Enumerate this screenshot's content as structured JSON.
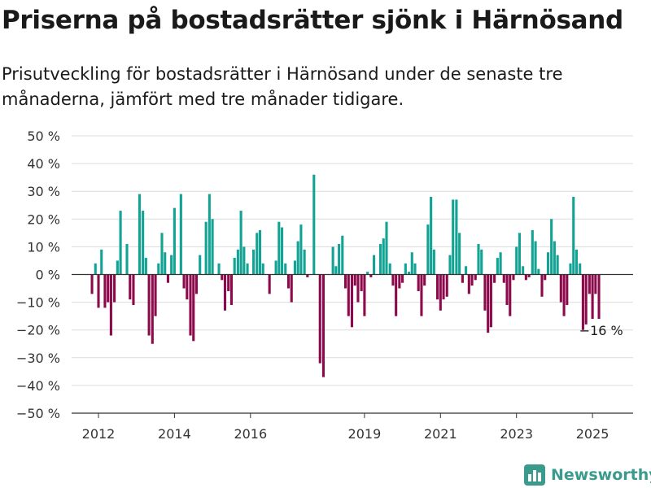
{
  "header": {
    "title": "Priserna på bostadsrätter sjönk i Härnösand",
    "subtitle": "Prisutveckling för bostadsrätter i Härnösand under de senaste tre månaderna, jämfört med tre månader tidigare."
  },
  "brand": {
    "name": "Newsworthy",
    "icon": "bar-chart-logo-icon"
  },
  "colors": {
    "positive": "#12a394",
    "negative": "#8c0a4b",
    "grid": "#dcdcdc",
    "zero": "#333333"
  },
  "chart_data": {
    "type": "bar",
    "title": "",
    "xlabel": "",
    "ylabel": "",
    "ylim": [
      -50,
      50
    ],
    "y_ticks": [
      50,
      40,
      30,
      20,
      10,
      0,
      -10,
      -20,
      -30,
      -40,
      -50
    ],
    "y_tick_labels": [
      "50 %",
      "40 %",
      "30 %",
      "20 %",
      "10 %",
      "0 %",
      "−10 %",
      "−20 %",
      "−30 %",
      "−40 %",
      "−50 %"
    ],
    "x_ticks": [
      2012,
      2014,
      2016,
      2019,
      2021,
      2023,
      2025
    ],
    "grid": true,
    "annotation": {
      "text": "−16 %",
      "year": 2025.25,
      "value": -16
    },
    "series": [
      {
        "values": [
          {
            "x": 2011.83,
            "y": -7
          },
          {
            "x": 2011.92,
            "y": 4
          },
          {
            "x": 2012.0,
            "y": -12
          },
          {
            "x": 2012.08,
            "y": 9
          },
          {
            "x": 2012.17,
            "y": -12
          },
          {
            "x": 2012.25,
            "y": -10
          },
          {
            "x": 2012.33,
            "y": -22
          },
          {
            "x": 2012.42,
            "y": -10
          },
          {
            "x": 2012.5,
            "y": 5
          },
          {
            "x": 2012.58,
            "y": 23
          },
          {
            "x": 2012.75,
            "y": 11
          },
          {
            "x": 2012.83,
            "y": -9
          },
          {
            "x": 2012.92,
            "y": -11
          },
          {
            "x": 2013.08,
            "y": 29
          },
          {
            "x": 2013.17,
            "y": 23
          },
          {
            "x": 2013.25,
            "y": 6
          },
          {
            "x": 2013.33,
            "y": -22
          },
          {
            "x": 2013.42,
            "y": -25
          },
          {
            "x": 2013.5,
            "y": -15
          },
          {
            "x": 2013.58,
            "y": 4
          },
          {
            "x": 2013.67,
            "y": 15
          },
          {
            "x": 2013.75,
            "y": 8
          },
          {
            "x": 2013.83,
            "y": -3
          },
          {
            "x": 2013.92,
            "y": 7
          },
          {
            "x": 2014.0,
            "y": 24
          },
          {
            "x": 2014.17,
            "y": 29
          },
          {
            "x": 2014.25,
            "y": -5
          },
          {
            "x": 2014.33,
            "y": -9
          },
          {
            "x": 2014.42,
            "y": -22
          },
          {
            "x": 2014.5,
            "y": -24
          },
          {
            "x": 2014.58,
            "y": -7
          },
          {
            "x": 2014.67,
            "y": 7
          },
          {
            "x": 2014.83,
            "y": 19
          },
          {
            "x": 2014.92,
            "y": 29
          },
          {
            "x": 2015.0,
            "y": 20
          },
          {
            "x": 2015.17,
            "y": 4
          },
          {
            "x": 2015.25,
            "y": -2
          },
          {
            "x": 2015.33,
            "y": -13
          },
          {
            "x": 2015.42,
            "y": -6
          },
          {
            "x": 2015.5,
            "y": -11
          },
          {
            "x": 2015.58,
            "y": 6
          },
          {
            "x": 2015.67,
            "y": 9
          },
          {
            "x": 2015.75,
            "y": 23
          },
          {
            "x": 2015.83,
            "y": 10
          },
          {
            "x": 2015.92,
            "y": 4
          },
          {
            "x": 2016.08,
            "y": 9
          },
          {
            "x": 2016.17,
            "y": 15
          },
          {
            "x": 2016.25,
            "y": 16
          },
          {
            "x": 2016.33,
            "y": 4
          },
          {
            "x": 2016.5,
            "y": -7
          },
          {
            "x": 2016.67,
            "y": 5
          },
          {
            "x": 2016.75,
            "y": 19
          },
          {
            "x": 2016.83,
            "y": 17
          },
          {
            "x": 2016.92,
            "y": 4
          },
          {
            "x": 2017.0,
            "y": -5
          },
          {
            "x": 2017.08,
            "y": -10
          },
          {
            "x": 2017.17,
            "y": 5
          },
          {
            "x": 2017.25,
            "y": 12
          },
          {
            "x": 2017.33,
            "y": 18
          },
          {
            "x": 2017.42,
            "y": 9
          },
          {
            "x": 2017.5,
            "y": -1
          },
          {
            "x": 2017.67,
            "y": 36
          },
          {
            "x": 2017.83,
            "y": -32
          },
          {
            "x": 2017.92,
            "y": -37
          },
          {
            "x": 2018.17,
            "y": 10
          },
          {
            "x": 2018.25,
            "y": 3
          },
          {
            "x": 2018.33,
            "y": 11
          },
          {
            "x": 2018.42,
            "y": 14
          },
          {
            "x": 2018.5,
            "y": -5
          },
          {
            "x": 2018.58,
            "y": -15
          },
          {
            "x": 2018.67,
            "y": -19
          },
          {
            "x": 2018.75,
            "y": -4
          },
          {
            "x": 2018.83,
            "y": -10
          },
          {
            "x": 2018.92,
            "y": -6
          },
          {
            "x": 2019.0,
            "y": -15
          },
          {
            "x": 2019.08,
            "y": 1
          },
          {
            "x": 2019.17,
            "y": -1
          },
          {
            "x": 2019.25,
            "y": 7
          },
          {
            "x": 2019.42,
            "y": 11
          },
          {
            "x": 2019.5,
            "y": 13
          },
          {
            "x": 2019.58,
            "y": 19
          },
          {
            "x": 2019.67,
            "y": 4
          },
          {
            "x": 2019.75,
            "y": -4
          },
          {
            "x": 2019.83,
            "y": -15
          },
          {
            "x": 2019.92,
            "y": -5
          },
          {
            "x": 2020.0,
            "y": -3
          },
          {
            "x": 2020.08,
            "y": 4
          },
          {
            "x": 2020.17,
            "y": 1
          },
          {
            "x": 2020.25,
            "y": 8
          },
          {
            "x": 2020.33,
            "y": 4
          },
          {
            "x": 2020.42,
            "y": -6
          },
          {
            "x": 2020.5,
            "y": -15
          },
          {
            "x": 2020.58,
            "y": -4
          },
          {
            "x": 2020.67,
            "y": 18
          },
          {
            "x": 2020.75,
            "y": 28
          },
          {
            "x": 2020.83,
            "y": 9
          },
          {
            "x": 2020.92,
            "y": -9
          },
          {
            "x": 2021.0,
            "y": -13
          },
          {
            "x": 2021.08,
            "y": -9
          },
          {
            "x": 2021.17,
            "y": -8
          },
          {
            "x": 2021.25,
            "y": 7
          },
          {
            "x": 2021.33,
            "y": 27
          },
          {
            "x": 2021.42,
            "y": 27
          },
          {
            "x": 2021.5,
            "y": 15
          },
          {
            "x": 2021.58,
            "y": -3
          },
          {
            "x": 2021.67,
            "y": 3
          },
          {
            "x": 2021.75,
            "y": -7
          },
          {
            "x": 2021.83,
            "y": -4
          },
          {
            "x": 2021.92,
            "y": -2
          },
          {
            "x": 2022.0,
            "y": 11
          },
          {
            "x": 2022.08,
            "y": 9
          },
          {
            "x": 2022.17,
            "y": -13
          },
          {
            "x": 2022.25,
            "y": -21
          },
          {
            "x": 2022.33,
            "y": -19
          },
          {
            "x": 2022.42,
            "y": -3
          },
          {
            "x": 2022.5,
            "y": 6
          },
          {
            "x": 2022.58,
            "y": 8
          },
          {
            "x": 2022.67,
            "y": -3
          },
          {
            "x": 2022.75,
            "y": -11
          },
          {
            "x": 2022.83,
            "y": -15
          },
          {
            "x": 2022.92,
            "y": -2
          },
          {
            "x": 2023.0,
            "y": 10
          },
          {
            "x": 2023.08,
            "y": 15
          },
          {
            "x": 2023.17,
            "y": 3
          },
          {
            "x": 2023.25,
            "y": -2
          },
          {
            "x": 2023.33,
            "y": -1
          },
          {
            "x": 2023.42,
            "y": 16
          },
          {
            "x": 2023.5,
            "y": 12
          },
          {
            "x": 2023.58,
            "y": 2
          },
          {
            "x": 2023.67,
            "y": -8
          },
          {
            "x": 2023.75,
            "y": -2
          },
          {
            "x": 2023.83,
            "y": 8
          },
          {
            "x": 2023.92,
            "y": 20
          },
          {
            "x": 2024.0,
            "y": 12
          },
          {
            "x": 2024.08,
            "y": 7
          },
          {
            "x": 2024.17,
            "y": -10
          },
          {
            "x": 2024.25,
            "y": -15
          },
          {
            "x": 2024.33,
            "y": -11
          },
          {
            "x": 2024.42,
            "y": 4
          },
          {
            "x": 2024.5,
            "y": 28
          },
          {
            "x": 2024.58,
            "y": 9
          },
          {
            "x": 2024.67,
            "y": 4
          },
          {
            "x": 2024.75,
            "y": -20
          },
          {
            "x": 2024.83,
            "y": -18
          },
          {
            "x": 2024.92,
            "y": -7
          },
          {
            "x": 2025.0,
            "y": -16
          },
          {
            "x": 2025.08,
            "y": -7
          },
          {
            "x": 2025.17,
            "y": -16
          }
        ]
      }
    ]
  }
}
